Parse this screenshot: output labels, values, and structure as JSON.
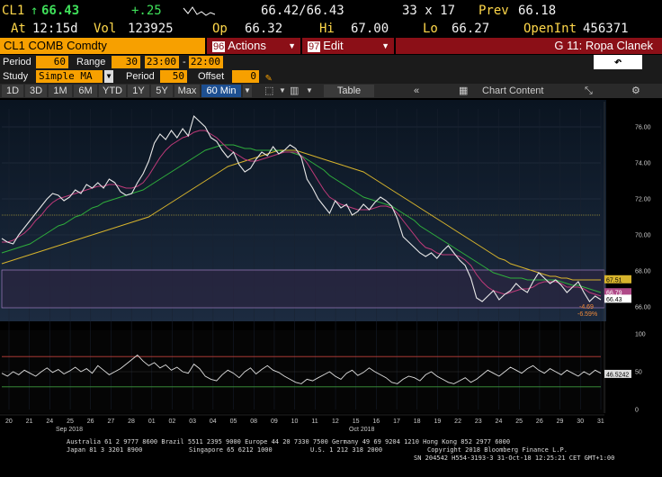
{
  "quote": {
    "ticker": "CL1",
    "last": "66.43",
    "change": "+.25",
    "bid_ask": "66.42/66.43",
    "size": "33 x 17",
    "prev_label": "Prev",
    "prev": "66.18",
    "at_label": "At",
    "time": "12:15d",
    "vol_label": "Vol",
    "vol": "123925",
    "op_label": "Op",
    "open": "66.32",
    "hi_label": "Hi",
    "high": "67.00",
    "lo_label": "Lo",
    "low": "66.27",
    "openint_label": "OpenInt",
    "openint": "456371"
  },
  "security_bar": {
    "security": "CL1 COMB Comdty",
    "actions_num": "96",
    "actions_label": "Actions",
    "edit_num": "97",
    "edit_label": "Edit",
    "group_label": "G 11: Ropa Clanek"
  },
  "params": {
    "period_label": "Period",
    "period_value": "60",
    "range_label": "Range",
    "range_value": "30",
    "range_from": "23:00",
    "range_dash": "-",
    "range_to": "22:00",
    "study_label": "Study",
    "study_value": "Simple MA",
    "study_period_label": "Period",
    "study_period_value": "50",
    "offset_label": "Offset",
    "offset_value": "0",
    "undo_icon": "undo-arrow-icon"
  },
  "toolbar": {
    "ranges": [
      "1D",
      "3D",
      "1M",
      "6M",
      "YTD",
      "1Y",
      "5Y",
      "Max"
    ],
    "interval": "60 Min",
    "table_label": "Table",
    "chart_content_label": "Chart Content"
  },
  "chart_data": {
    "type": "line",
    "xlabel": "",
    "ylabel": "",
    "x_ticks": [
      "20",
      "21",
      "24",
      "25",
      "26",
      "27",
      "28",
      "01",
      "02",
      "03",
      "04",
      "05",
      "08",
      "09",
      "10",
      "11",
      "12",
      "15",
      "16",
      "17",
      "18",
      "19",
      "22",
      "23",
      "24",
      "25",
      "26",
      "29",
      "30",
      "31"
    ],
    "month_labels": [
      "Sep 2018",
      "Oct 2018"
    ],
    "price_ylim": [
      65.2,
      77.0
    ],
    "price_yticks": [
      "76.00",
      "74.00",
      "72.00",
      "70.00",
      "68.00",
      "66.00"
    ],
    "rsi_ylim": [
      0,
      100
    ],
    "rsi_yticks": [
      "100",
      "50",
      "0"
    ],
    "price_series": [
      69.8,
      69.6,
      69.5,
      70.0,
      70.4,
      70.8,
      71.2,
      71.6,
      72.0,
      72.3,
      72.2,
      71.9,
      72.1,
      72.5,
      72.3,
      72.8,
      72.6,
      72.9,
      72.6,
      73.1,
      72.9,
      72.4,
      72.2,
      72.3,
      72.9,
      73.4,
      74.1,
      75.1,
      75.6,
      75.3,
      75.8,
      75.4,
      75.9,
      75.5,
      76.6,
      76.3,
      76.0,
      75.4,
      75.2,
      74.7,
      74.3,
      74.6,
      73.9,
      73.5,
      73.7,
      74.2,
      74.6,
      74.4,
      74.9,
      74.5,
      74.7,
      75.0,
      74.8,
      74.3,
      73.1,
      72.6,
      72.0,
      71.6,
      71.2,
      71.9,
      71.5,
      71.7,
      71.1,
      71.3,
      71.7,
      71.4,
      71.8,
      72.1,
      71.9,
      71.6,
      70.9,
      69.9,
      69.6,
      69.3,
      69.0,
      68.8,
      69.0,
      68.7,
      69.1,
      69.4,
      69.0,
      68.6,
      68.3,
      67.6,
      66.5,
      66.3,
      66.6,
      66.9,
      66.4,
      66.7,
      66.9,
      67.3,
      67.0,
      66.8,
      67.4,
      67.9,
      67.6,
      67.3,
      67.5,
      67.2,
      66.8,
      67.1,
      67.4,
      66.8,
      66.3,
      66.6,
      66.4
    ],
    "ma_short": [
      69.6,
      69.6,
      69.7,
      69.9,
      70.1,
      70.4,
      70.8,
      71.1,
      71.5,
      71.8,
      72.0,
      72.1,
      72.2,
      72.3,
      72.4,
      72.5,
      72.6,
      72.7,
      72.7,
      72.8,
      72.8,
      72.7,
      72.6,
      72.6,
      72.7,
      72.9,
      73.3,
      73.8,
      74.3,
      74.7,
      75.0,
      75.2,
      75.4,
      75.5,
      75.7,
      75.8,
      75.8,
      75.6,
      75.4,
      75.1,
      74.8,
      74.6,
      74.4,
      74.2,
      74.1,
      74.1,
      74.2,
      74.3,
      74.4,
      74.5,
      74.6,
      74.6,
      74.6,
      74.4,
      74.0,
      73.5,
      73.0,
      72.5,
      72.1,
      71.9,
      71.7,
      71.6,
      71.5,
      71.4,
      71.4,
      71.4,
      71.5,
      71.6,
      71.6,
      71.5,
      71.2,
      70.8,
      70.4,
      70.0,
      69.6,
      69.3,
      69.2,
      69.0,
      68.9,
      68.9,
      68.9,
      68.8,
      68.6,
      68.3,
      67.8,
      67.4,
      67.1,
      66.9,
      66.8,
      66.7,
      66.8,
      66.9,
      67.0,
      67.0,
      67.1,
      67.3,
      67.4,
      67.4,
      67.4,
      67.3,
      67.1,
      67.1,
      67.1,
      67.0,
      66.8,
      66.7,
      66.6
    ],
    "ma_50": [
      69.0,
      69.1,
      69.2,
      69.3,
      69.4,
      69.5,
      69.7,
      69.9,
      70.1,
      70.3,
      70.5,
      70.6,
      70.8,
      71.0,
      71.1,
      71.3,
      71.5,
      71.6,
      71.8,
      71.9,
      72.0,
      72.1,
      72.2,
      72.3,
      72.4,
      72.5,
      72.7,
      72.9,
      73.1,
      73.3,
      73.5,
      73.7,
      73.9,
      74.1,
      74.3,
      74.5,
      74.7,
      74.8,
      74.9,
      75.0,
      75.0,
      75.0,
      74.9,
      74.8,
      74.8,
      74.7,
      74.7,
      74.7,
      74.7,
      74.7,
      74.6,
      74.6,
      74.5,
      74.4,
      74.2,
      74.0,
      73.8,
      73.6,
      73.3,
      73.1,
      72.9,
      72.7,
      72.5,
      72.3,
      72.1,
      72.0,
      71.9,
      71.8,
      71.7,
      71.6,
      71.4,
      71.2,
      71.0,
      70.8,
      70.5,
      70.3,
      70.1,
      69.9,
      69.7,
      69.5,
      69.3,
      69.1,
      68.9,
      68.7,
      68.5,
      68.3,
      68.1,
      67.9,
      67.8,
      67.7,
      67.6,
      67.6,
      67.6,
      67.5,
      67.5,
      67.5,
      67.5,
      67.5,
      67.5,
      67.4,
      67.3,
      67.2,
      67.2,
      67.1,
      67.0,
      66.9,
      66.8
    ],
    "ma_long": [
      68.4,
      68.5,
      68.6,
      68.7,
      68.8,
      68.9,
      69.0,
      69.1,
      69.2,
      69.3,
      69.4,
      69.5,
      69.6,
      69.7,
      69.8,
      69.9,
      70.0,
      70.1,
      70.2,
      70.3,
      70.4,
      70.5,
      70.6,
      70.7,
      70.8,
      70.9,
      71.0,
      71.2,
      71.4,
      71.6,
      71.8,
      72.0,
      72.2,
      72.4,
      72.6,
      72.8,
      73.0,
      73.2,
      73.4,
      73.6,
      73.8,
      73.9,
      74.0,
      74.1,
      74.2,
      74.3,
      74.4,
      74.5,
      74.6,
      74.7,
      74.7,
      74.7,
      74.7,
      74.6,
      74.5,
      74.4,
      74.3,
      74.2,
      74.1,
      74.0,
      73.9,
      73.8,
      73.7,
      73.6,
      73.5,
      73.3,
      73.1,
      72.9,
      72.7,
      72.5,
      72.3,
      72.1,
      71.9,
      71.7,
      71.5,
      71.3,
      71.1,
      70.9,
      70.7,
      70.5,
      70.3,
      70.1,
      69.9,
      69.7,
      69.5,
      69.3,
      69.1,
      68.9,
      68.7,
      68.6,
      68.4,
      68.3,
      68.2,
      68.1,
      68.0,
      67.9,
      67.8,
      67.7,
      67.7,
      67.6,
      67.6,
      67.5,
      67.5,
      67.5,
      67.5,
      67.5,
      67.5
    ],
    "rsi_series": [
      48,
      44,
      50,
      46,
      52,
      48,
      44,
      50,
      55,
      49,
      53,
      47,
      51,
      56,
      50,
      54,
      48,
      58,
      52,
      46,
      50,
      54,
      60,
      66,
      72,
      64,
      58,
      62,
      55,
      59,
      52,
      56,
      50,
      48,
      60,
      54,
      44,
      40,
      38,
      46,
      52,
      48,
      42,
      50,
      55,
      47,
      53,
      58,
      52,
      49,
      44,
      40,
      36,
      34,
      40,
      38,
      42,
      46,
      50,
      44,
      40,
      48,
      52,
      45,
      49,
      55,
      50,
      46,
      42,
      36,
      34,
      40,
      44,
      42,
      38,
      46,
      50,
      44,
      40,
      36,
      34,
      38,
      42,
      36,
      40,
      46,
      52,
      48,
      44,
      50,
      56,
      52,
      48,
      54,
      58,
      52,
      48,
      54,
      50,
      46,
      52,
      48,
      44,
      50,
      46,
      52,
      48
    ],
    "rsi_upper": 70,
    "rsi_lower": 30,
    "last_label": "66.43",
    "ma_label_1": "67.51",
    "ma_label_2": "66.79",
    "rsi_last_label": "46.5242",
    "annotation_1": "-4.69",
    "annotation_2": "-6.59%",
    "colors": {
      "price": "#e8e8e8",
      "ma_short": "#c03a7a",
      "ma_50": "#2fae3c",
      "ma_long": "#d6b32c",
      "band": "#2a2540",
      "hline": "#a89a3a",
      "rsi_hot": "#c0413c",
      "rsi_cold": "#3f9a3f"
    }
  },
  "footer": {
    "line1": "Australia 61 2 9777 8600 Brazil 5511 2395 9000 Europe 44 20 7330 7500 Germany 49 69 9204 1210 Hong Kong 852 2977 6000",
    "line2_left": "Japan 81 3 3201 8900",
    "line2_mid": "Singapore 65 6212 1000",
    "line2_us": "U.S. 1 212 318 2000",
    "line2_copy": "Copyright 2018 Bloomberg Finance L.P.",
    "line3": "SN 204542 H554-3193-3 31-Oct-18 12:25:21 CET  GMT+1:00"
  }
}
